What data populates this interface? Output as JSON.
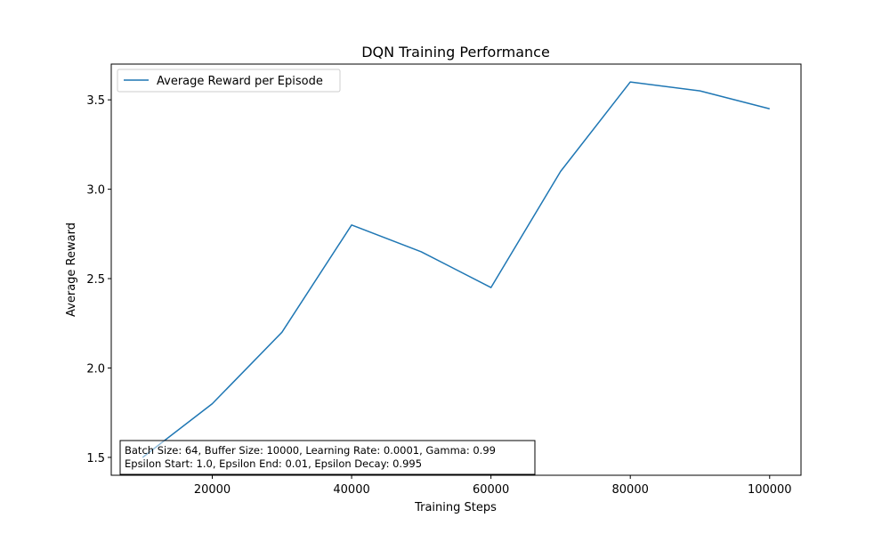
{
  "chart_data": {
    "type": "line",
    "title": "DQN Training Performance",
    "xlabel": "Training Steps",
    "ylabel": "Average Reward",
    "xlim": [
      5500,
      104500
    ],
    "ylim": [
      1.4,
      3.7
    ],
    "xticks": [
      20000,
      40000,
      60000,
      80000,
      100000
    ],
    "yticks": [
      1.5,
      2.0,
      2.5,
      3.0,
      3.5
    ],
    "grid": false,
    "legend_position": "top-left",
    "series": [
      {
        "name": "Average Reward per Episode",
        "color": "#1f77b4",
        "x": [
          10000,
          20000,
          30000,
          40000,
          50000,
          60000,
          70000,
          80000,
          90000,
          100000
        ],
        "y": [
          1.5,
          1.8,
          2.2,
          2.8,
          2.65,
          2.45,
          3.1,
          3.6,
          3.55,
          3.45
        ]
      }
    ],
    "annotations": [
      "Batch Size: 64, Buffer Size: 10000, Learning Rate: 0.0001, Gamma: 0.99",
      "Epsilon Start: 1.0, Epsilon End: 0.01, Epsilon Decay: 0.995"
    ]
  }
}
